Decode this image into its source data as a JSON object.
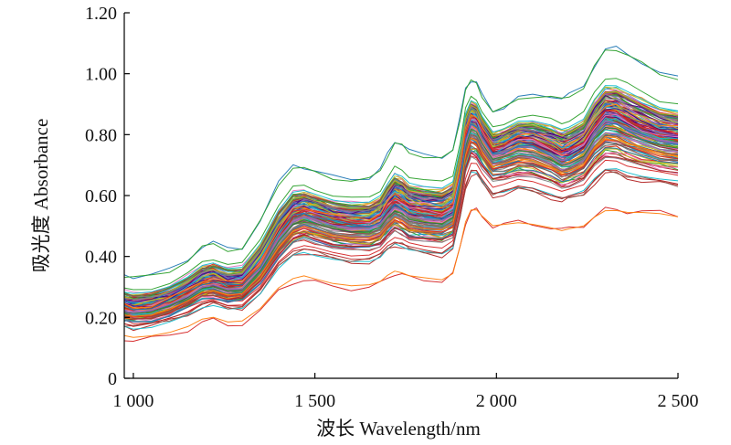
{
  "chart_data": {
    "type": "line",
    "title": "",
    "xlabel": "波长 Wavelength/nm",
    "ylabel": "吸光度 Absorbance",
    "xlim": [
      975,
      2500
    ],
    "ylim": [
      0,
      1.2
    ],
    "grid": false,
    "legend": "none",
    "x_ticks": [
      1000,
      1500,
      2000,
      2500
    ],
    "x_tick_labels": [
      "1 000",
      "1 500",
      "2 000",
      "2 500"
    ],
    "y_ticks": [
      0,
      0.2,
      0.4,
      0.6,
      0.8,
      1.0,
      1.2
    ],
    "y_tick_labels": [
      "0",
      "0.20",
      "0.40",
      "0.60",
      "0.80",
      "1.00",
      "1.20"
    ],
    "series_count": 160,
    "series_colors": [
      "#1f77b4",
      "#d62728",
      "#2ca02c",
      "#ff7f0e",
      "#9467bd",
      "#8c564b",
      "#e377c2",
      "#17becf",
      "#bcbd22",
      "#7f7f7f",
      "#b22222",
      "#4b0082"
    ],
    "spectrum_template": {
      "wavelengths": [
        975,
        1000,
        1050,
        1100,
        1150,
        1190,
        1220,
        1260,
        1300,
        1350,
        1400,
        1440,
        1470,
        1500,
        1550,
        1600,
        1650,
        1680,
        1700,
        1720,
        1740,
        1760,
        1800,
        1850,
        1880,
        1900,
        1915,
        1930,
        1945,
        1960,
        1990,
        2020,
        2060,
        2100,
        2150,
        2180,
        2200,
        2240,
        2270,
        2300,
        2330,
        2360,
        2400,
        2450,
        2500
      ],
      "mean": [
        0.23,
        0.225,
        0.23,
        0.25,
        0.28,
        0.31,
        0.315,
        0.3,
        0.305,
        0.37,
        0.47,
        0.53,
        0.545,
        0.535,
        0.515,
        0.505,
        0.505,
        0.52,
        0.55,
        0.575,
        0.565,
        0.545,
        0.535,
        0.53,
        0.55,
        0.66,
        0.79,
        0.85,
        0.84,
        0.8,
        0.745,
        0.755,
        0.775,
        0.77,
        0.745,
        0.725,
        0.73,
        0.755,
        0.815,
        0.855,
        0.85,
        0.83,
        0.81,
        0.79,
        0.78
      ],
      "min": [
        0.13,
        0.125,
        0.13,
        0.14,
        0.16,
        0.185,
        0.19,
        0.175,
        0.18,
        0.22,
        0.285,
        0.315,
        0.325,
        0.315,
        0.3,
        0.295,
        0.3,
        0.31,
        0.33,
        0.345,
        0.34,
        0.33,
        0.325,
        0.32,
        0.34,
        0.43,
        0.51,
        0.55,
        0.55,
        0.53,
        0.5,
        0.505,
        0.51,
        0.505,
        0.495,
        0.485,
        0.49,
        0.5,
        0.53,
        0.55,
        0.55,
        0.545,
        0.545,
        0.54,
        0.53
      ],
      "max": [
        0.34,
        0.335,
        0.34,
        0.355,
        0.39,
        0.435,
        0.445,
        0.425,
        0.43,
        0.52,
        0.64,
        0.7,
        0.695,
        0.68,
        0.66,
        0.655,
        0.66,
        0.685,
        0.735,
        0.78,
        0.77,
        0.745,
        0.735,
        0.73,
        0.75,
        0.855,
        0.955,
        0.98,
        0.97,
        0.93,
        0.88,
        0.89,
        0.92,
        0.93,
        0.93,
        0.92,
        0.93,
        0.96,
        1.03,
        1.08,
        1.085,
        1.07,
        1.04,
        1.0,
        0.99
      ]
    }
  }
}
